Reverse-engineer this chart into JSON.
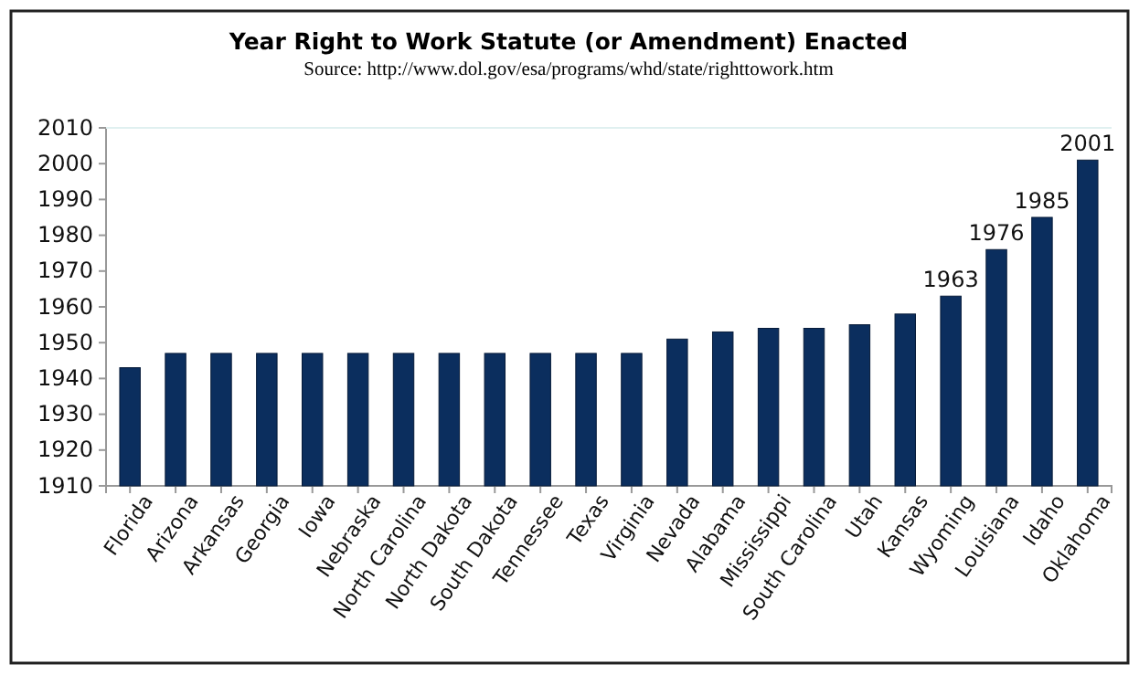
{
  "chart_data": {
    "type": "bar",
    "title": "Year Right to Work Statute (or Amendment) Enacted",
    "annotations": [
      "Source: http://www.dol.gov/esa/programs/whd/state/righttowork.htm"
    ],
    "categories": [
      "Florida",
      "Arizona",
      "Arkansas",
      "Georgia",
      "Iowa",
      "Nebraska",
      "North Carolina",
      "North Dakota",
      "South Dakota",
      "Tennessee",
      "Texas",
      "Virginia",
      "Nevada",
      "Alabama",
      "Mississippi",
      "South Carolina",
      "Utah",
      "Kansas",
      "Wyoming",
      "Louisiana",
      "Idaho",
      "Oklahoma"
    ],
    "values": [
      1943,
      1947,
      1947,
      1947,
      1947,
      1947,
      1947,
      1947,
      1947,
      1947,
      1947,
      1947,
      1951,
      1953,
      1954,
      1954,
      1955,
      1958,
      1963,
      1976,
      1985,
      2001
    ],
    "value_labels": [
      null,
      null,
      null,
      null,
      null,
      null,
      null,
      null,
      null,
      null,
      null,
      null,
      null,
      null,
      null,
      null,
      null,
      null,
      "1963",
      "1976",
      "1985",
      "2001"
    ],
    "color": "#0b2e5e",
    "ylim": [
      1910,
      2010
    ],
    "yticks": [
      1910,
      1920,
      1930,
      1940,
      1950,
      1960,
      1970,
      1980,
      1990,
      2000,
      2010
    ]
  }
}
